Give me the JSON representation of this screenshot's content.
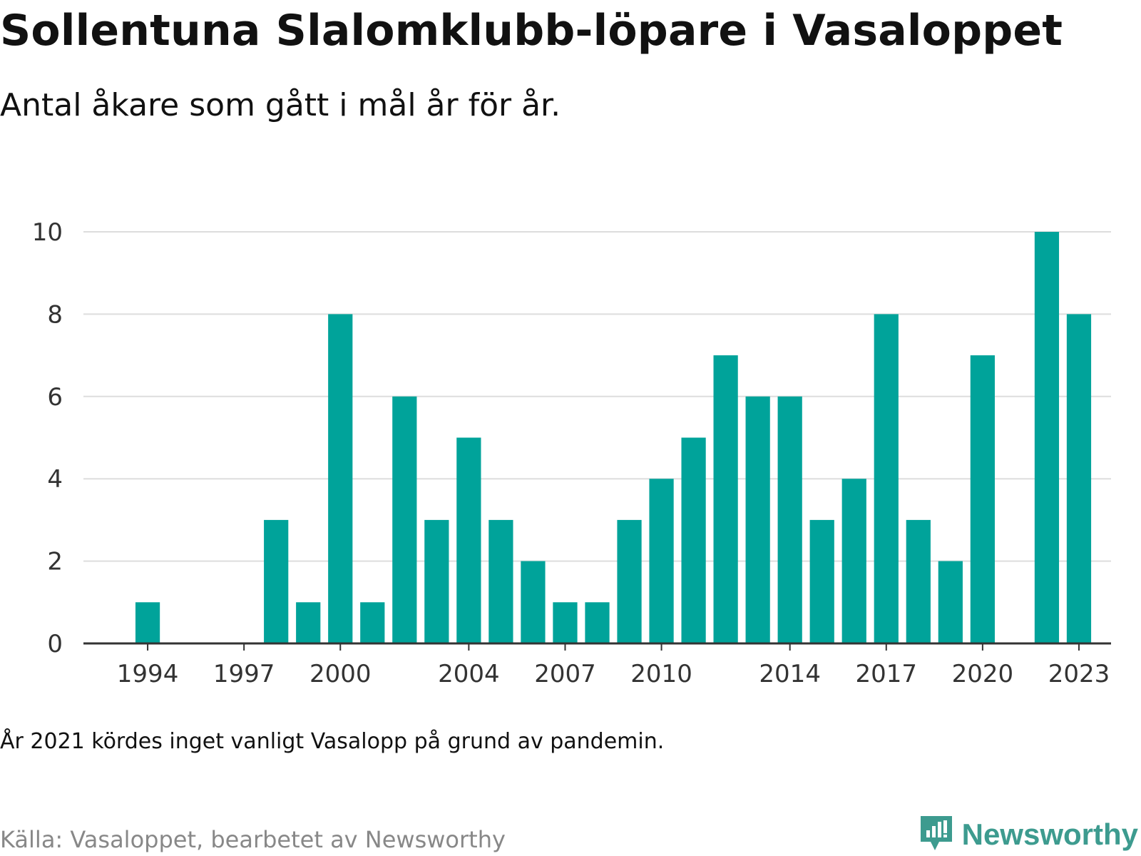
{
  "header": {
    "title": "Sollentuna Slalomklubb-löpare i Vasaloppet",
    "subtitle": "Antal åkare som gått i mål år för år."
  },
  "chart_data": {
    "type": "bar",
    "title": "Sollentuna Slalomklubb-löpare i Vasaloppet",
    "subtitle": "Antal åkare som gått i mål år för år.",
    "xlabel": "",
    "ylabel": "",
    "x_range": [
      1992,
      2024
    ],
    "ylim": [
      0,
      10
    ],
    "y_ticks": [
      0,
      2,
      4,
      6,
      8,
      10
    ],
    "x_ticks": [
      1994,
      1997,
      2000,
      2004,
      2007,
      2010,
      2014,
      2017,
      2020,
      2023
    ],
    "grid": true,
    "bar_color": "#00a39a",
    "x": [
      1994,
      1998,
      1999,
      2000,
      2001,
      2002,
      2003,
      2004,
      2005,
      2006,
      2007,
      2008,
      2009,
      2010,
      2011,
      2012,
      2013,
      2014,
      2015,
      2016,
      2017,
      2018,
      2019,
      2020,
      2022,
      2023
    ],
    "values": [
      1,
      3,
      1,
      8,
      1,
      6,
      3,
      5,
      3,
      2,
      1,
      1,
      3,
      4,
      5,
      7,
      6,
      6,
      3,
      4,
      8,
      3,
      2,
      7,
      10,
      8
    ]
  },
  "footer": {
    "note": "År 2021 kördes inget vanligt Vasalopp på grund av pandemin.",
    "source": "Källa: Vasaloppet, bearbetet av Newsworthy",
    "brand": "Newsworthy",
    "brand_color": "#3d9b8f"
  }
}
